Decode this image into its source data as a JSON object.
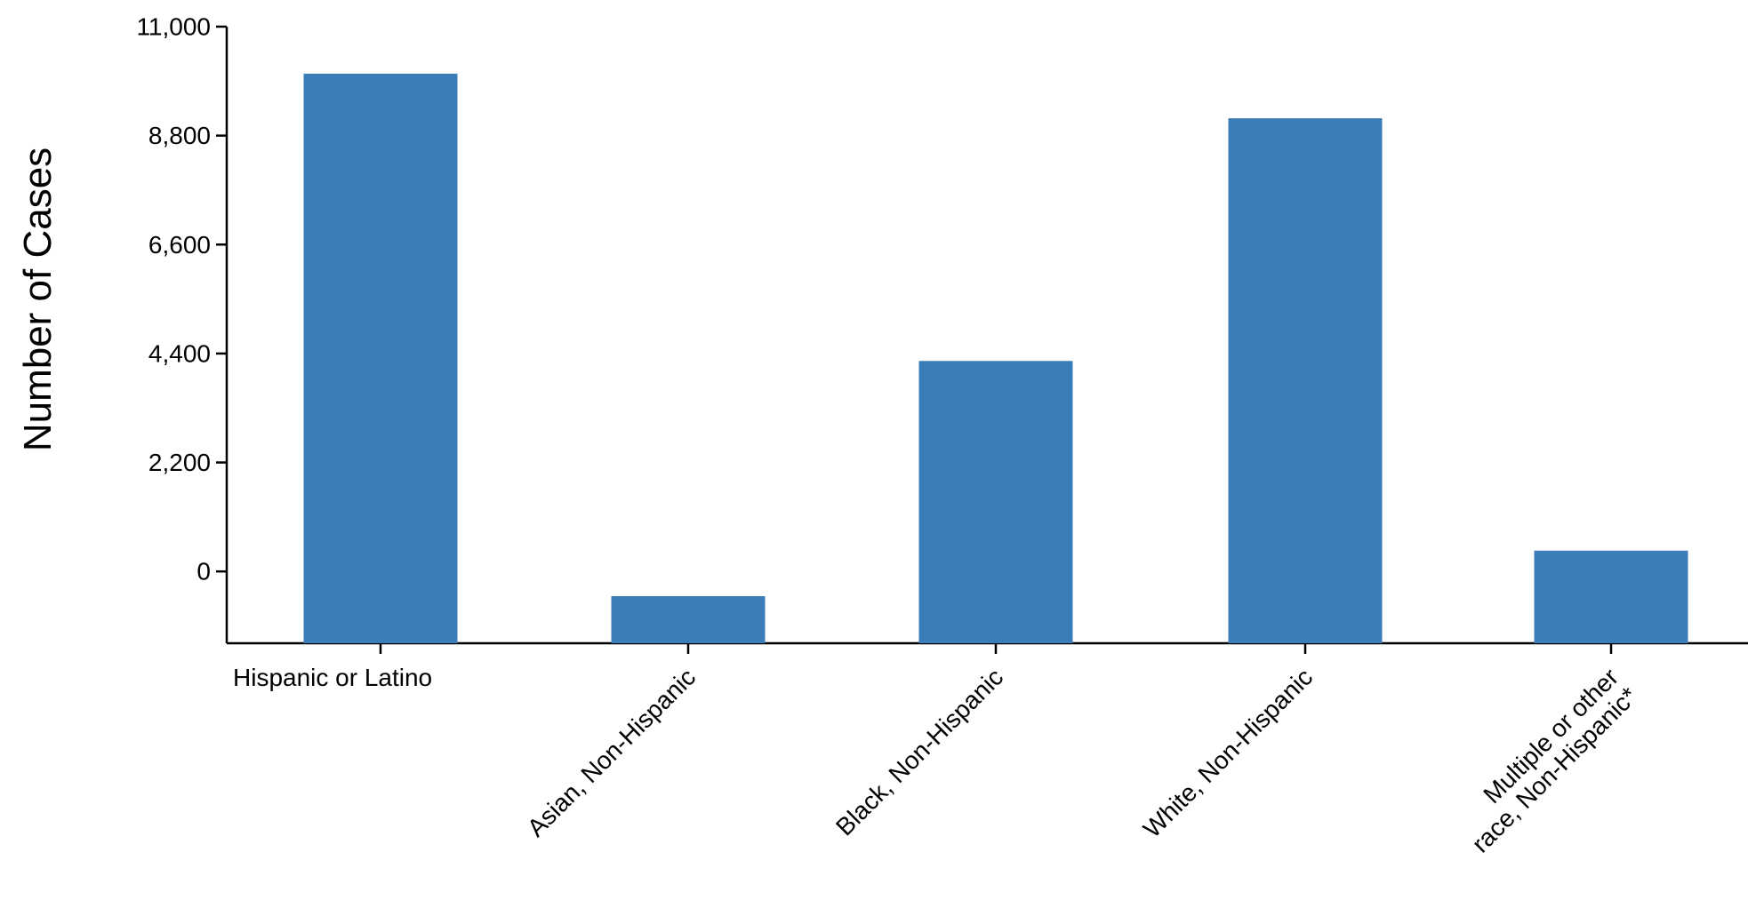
{
  "chart_data": {
    "type": "bar",
    "ylabel": "Number of Cases",
    "xlabel": "",
    "yticks": [
      0,
      2200,
      4400,
      6600,
      8800,
      11000
    ],
    "ytick_labels": [
      "0",
      "2,200",
      "4,400",
      "6,600",
      "8,800",
      "11,000"
    ],
    "ylim": [
      -1450,
      11000
    ],
    "categories": [
      [
        "Hispanic or Latino"
      ],
      [
        "Asian, Non-Hispanic"
      ],
      [
        "Black, Non-Hispanic"
      ],
      [
        "White, Non-Hispanic"
      ],
      [
        "Multiple or other",
        "race, Non-Hispanic*"
      ]
    ],
    "values": [
      10050,
      -500,
      4250,
      9150,
      420
    ],
    "bar_color": "#3a7db8",
    "grid": false
  }
}
